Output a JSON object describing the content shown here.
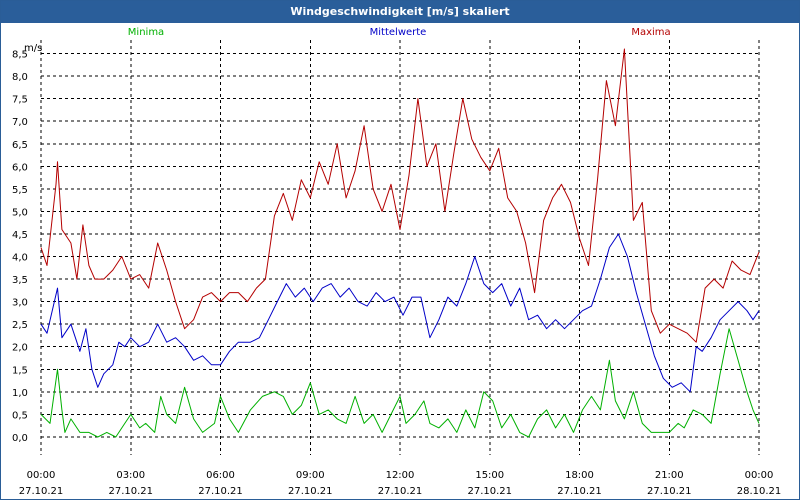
{
  "window": {
    "title": "Windgeschwindigkeit [m/s] skaliert"
  },
  "chart_data": {
    "type": "line",
    "title": "Windgeschwindigkeit [m/s] skaliert",
    "ylabel": "m/s",
    "xlabel": "",
    "ylim": [
      -0.4,
      8.8
    ],
    "yticks": [
      0.0,
      0.5,
      1.0,
      1.5,
      2.0,
      2.5,
      3.0,
      3.5,
      4.0,
      4.5,
      5.0,
      5.5,
      6.0,
      6.5,
      7.0,
      7.5,
      8.0,
      8.5
    ],
    "ytick_labels": [
      "0,0",
      "0,5",
      "1,0",
      "1,5",
      "2,0",
      "2,5",
      "3,0",
      "3,5",
      "4,0",
      "4,5",
      "5,0",
      "5,5",
      "6,0",
      "6,5",
      "7,0",
      "7,5",
      "8,0",
      "8,5"
    ],
    "xlim": [
      0,
      24
    ],
    "xticks": [
      {
        "hour": 0,
        "time": "00:00",
        "date": "27.10.21"
      },
      {
        "hour": 3,
        "time": "03:00",
        "date": "27.10.21"
      },
      {
        "hour": 6,
        "time": "06:00",
        "date": "27.10.21"
      },
      {
        "hour": 9,
        "time": "09:00",
        "date": "27.10.21"
      },
      {
        "hour": 12,
        "time": "12:00",
        "date": "27.10.21"
      },
      {
        "hour": 15,
        "time": "15:00",
        "date": "27.10.21"
      },
      {
        "hour": 18,
        "time": "18:00",
        "date": "27.10.21"
      },
      {
        "hour": 21,
        "time": "21:00",
        "date": "27.10.21"
      },
      {
        "hour": 24,
        "time": "00:00",
        "date": "28.10.21"
      }
    ],
    "grid": true,
    "legend_position": "top",
    "series": [
      {
        "name": "Minima",
        "color": "#00b000",
        "points": [
          [
            0,
            0.5
          ],
          [
            0.3,
            0.3
          ],
          [
            0.55,
            1.5
          ],
          [
            0.7,
            0.6
          ],
          [
            0.8,
            0.1
          ],
          [
            1.0,
            0.4
          ],
          [
            1.3,
            0.1
          ],
          [
            1.6,
            0.1
          ],
          [
            1.9,
            0.0
          ],
          [
            2.2,
            0.1
          ],
          [
            2.5,
            0.0
          ],
          [
            2.8,
            0.3
          ],
          [
            3.0,
            0.5
          ],
          [
            3.3,
            0.2
          ],
          [
            3.5,
            0.3
          ],
          [
            3.8,
            0.1
          ],
          [
            4.0,
            0.9
          ],
          [
            4.2,
            0.5
          ],
          [
            4.5,
            0.3
          ],
          [
            4.8,
            1.1
          ],
          [
            5.1,
            0.4
          ],
          [
            5.4,
            0.1
          ],
          [
            5.8,
            0.3
          ],
          [
            6.0,
            0.9
          ],
          [
            6.3,
            0.4
          ],
          [
            6.6,
            0.1
          ],
          [
            7.0,
            0.6
          ],
          [
            7.4,
            0.9
          ],
          [
            7.8,
            1.0
          ],
          [
            8.1,
            0.9
          ],
          [
            8.4,
            0.5
          ],
          [
            8.7,
            0.7
          ],
          [
            9.0,
            1.2
          ],
          [
            9.3,
            0.5
          ],
          [
            9.6,
            0.6
          ],
          [
            9.9,
            0.4
          ],
          [
            10.2,
            0.3
          ],
          [
            10.5,
            0.9
          ],
          [
            10.8,
            0.3
          ],
          [
            11.1,
            0.5
          ],
          [
            11.4,
            0.1
          ],
          [
            11.7,
            0.5
          ],
          [
            12.0,
            0.9
          ],
          [
            12.2,
            0.3
          ],
          [
            12.5,
            0.5
          ],
          [
            12.8,
            0.8
          ],
          [
            13.0,
            0.3
          ],
          [
            13.3,
            0.2
          ],
          [
            13.6,
            0.4
          ],
          [
            13.9,
            0.1
          ],
          [
            14.2,
            0.6
          ],
          [
            14.5,
            0.2
          ],
          [
            14.8,
            1.0
          ],
          [
            15.1,
            0.8
          ],
          [
            15.4,
            0.2
          ],
          [
            15.7,
            0.5
          ],
          [
            16.0,
            0.1
          ],
          [
            16.3,
            0.0
          ],
          [
            16.6,
            0.4
          ],
          [
            16.9,
            0.6
          ],
          [
            17.2,
            0.2
          ],
          [
            17.5,
            0.5
          ],
          [
            17.8,
            0.1
          ],
          [
            18.1,
            0.6
          ],
          [
            18.4,
            0.9
          ],
          [
            18.7,
            0.6
          ],
          [
            19.0,
            1.7
          ],
          [
            19.2,
            0.8
          ],
          [
            19.5,
            0.4
          ],
          [
            19.8,
            1.0
          ],
          [
            20.1,
            0.3
          ],
          [
            20.4,
            0.1
          ],
          [
            20.7,
            0.1
          ],
          [
            21.0,
            0.1
          ],
          [
            21.3,
            0.3
          ],
          [
            21.5,
            0.2
          ],
          [
            21.8,
            0.6
          ],
          [
            22.1,
            0.5
          ],
          [
            22.4,
            0.3
          ],
          [
            22.7,
            1.4
          ],
          [
            23.0,
            2.4
          ],
          [
            23.3,
            1.7
          ],
          [
            23.6,
            1.0
          ],
          [
            23.8,
            0.6
          ],
          [
            24.0,
            0.3
          ]
        ]
      },
      {
        "name": "Mittelwerte",
        "color": "#0000c8",
        "points": [
          [
            0,
            2.5
          ],
          [
            0.2,
            2.3
          ],
          [
            0.55,
            3.3
          ],
          [
            0.7,
            2.2
          ],
          [
            1.0,
            2.5
          ],
          [
            1.3,
            1.9
          ],
          [
            1.5,
            2.4
          ],
          [
            1.7,
            1.5
          ],
          [
            1.9,
            1.1
          ],
          [
            2.1,
            1.4
          ],
          [
            2.4,
            1.6
          ],
          [
            2.6,
            2.1
          ],
          [
            2.8,
            2.0
          ],
          [
            3.0,
            2.2
          ],
          [
            3.3,
            2.0
          ],
          [
            3.6,
            2.1
          ],
          [
            3.9,
            2.5
          ],
          [
            4.2,
            2.1
          ],
          [
            4.5,
            2.2
          ],
          [
            4.8,
            2.0
          ],
          [
            5.1,
            1.7
          ],
          [
            5.4,
            1.8
          ],
          [
            5.7,
            1.6
          ],
          [
            6.0,
            1.6
          ],
          [
            6.3,
            1.9
          ],
          [
            6.6,
            2.1
          ],
          [
            7.0,
            2.1
          ],
          [
            7.3,
            2.2
          ],
          [
            7.6,
            2.6
          ],
          [
            7.9,
            3.0
          ],
          [
            8.2,
            3.4
          ],
          [
            8.5,
            3.1
          ],
          [
            8.8,
            3.3
          ],
          [
            9.1,
            3.0
          ],
          [
            9.4,
            3.3
          ],
          [
            9.7,
            3.4
          ],
          [
            10.0,
            3.1
          ],
          [
            10.3,
            3.3
          ],
          [
            10.6,
            3.0
          ],
          [
            10.9,
            2.9
          ],
          [
            11.2,
            3.2
          ],
          [
            11.5,
            3.0
          ],
          [
            11.8,
            3.1
          ],
          [
            12.1,
            2.7
          ],
          [
            12.4,
            3.1
          ],
          [
            12.7,
            3.1
          ],
          [
            13.0,
            2.2
          ],
          [
            13.3,
            2.6
          ],
          [
            13.6,
            3.1
          ],
          [
            13.9,
            2.9
          ],
          [
            14.2,
            3.4
          ],
          [
            14.5,
            4.0
          ],
          [
            14.8,
            3.4
          ],
          [
            15.1,
            3.2
          ],
          [
            15.4,
            3.4
          ],
          [
            15.7,
            2.9
          ],
          [
            16.0,
            3.3
          ],
          [
            16.3,
            2.6
          ],
          [
            16.6,
            2.7
          ],
          [
            16.9,
            2.4
          ],
          [
            17.2,
            2.6
          ],
          [
            17.5,
            2.4
          ],
          [
            17.8,
            2.6
          ],
          [
            18.1,
            2.8
          ],
          [
            18.4,
            2.9
          ],
          [
            18.7,
            3.5
          ],
          [
            19.0,
            4.2
          ],
          [
            19.3,
            4.5
          ],
          [
            19.6,
            4.0
          ],
          [
            19.9,
            3.2
          ],
          [
            20.2,
            2.5
          ],
          [
            20.5,
            1.8
          ],
          [
            20.8,
            1.3
          ],
          [
            21.1,
            1.1
          ],
          [
            21.4,
            1.2
          ],
          [
            21.7,
            1.0
          ],
          [
            21.9,
            2.0
          ],
          [
            22.1,
            1.9
          ],
          [
            22.4,
            2.2
          ],
          [
            22.7,
            2.6
          ],
          [
            23.0,
            2.8
          ],
          [
            23.3,
            3.0
          ],
          [
            23.6,
            2.8
          ],
          [
            23.8,
            2.6
          ],
          [
            24.0,
            2.8
          ]
        ]
      },
      {
        "name": "Maxima",
        "color": "#b40000",
        "points": [
          [
            0,
            4.2
          ],
          [
            0.2,
            3.8
          ],
          [
            0.5,
            5.6
          ],
          [
            0.55,
            6.1
          ],
          [
            0.7,
            4.6
          ],
          [
            1.0,
            4.3
          ],
          [
            1.2,
            3.5
          ],
          [
            1.4,
            4.7
          ],
          [
            1.6,
            3.8
          ],
          [
            1.8,
            3.5
          ],
          [
            2.1,
            3.5
          ],
          [
            2.4,
            3.7
          ],
          [
            2.7,
            4.0
          ],
          [
            3.0,
            3.5
          ],
          [
            3.3,
            3.6
          ],
          [
            3.6,
            3.3
          ],
          [
            3.9,
            4.3
          ],
          [
            4.2,
            3.7
          ],
          [
            4.5,
            3.0
          ],
          [
            4.8,
            2.4
          ],
          [
            5.1,
            2.6
          ],
          [
            5.4,
            3.1
          ],
          [
            5.7,
            3.2
          ],
          [
            6.0,
            3.0
          ],
          [
            6.3,
            3.2
          ],
          [
            6.6,
            3.2
          ],
          [
            6.9,
            3.0
          ],
          [
            7.2,
            3.3
          ],
          [
            7.5,
            3.5
          ],
          [
            7.8,
            4.9
          ],
          [
            8.1,
            5.4
          ],
          [
            8.4,
            4.8
          ],
          [
            8.7,
            5.7
          ],
          [
            9.0,
            5.3
          ],
          [
            9.3,
            6.1
          ],
          [
            9.6,
            5.6
          ],
          [
            9.9,
            6.5
          ],
          [
            10.2,
            5.3
          ],
          [
            10.5,
            5.9
          ],
          [
            10.8,
            6.9
          ],
          [
            11.1,
            5.5
          ],
          [
            11.4,
            5.0
          ],
          [
            11.7,
            5.6
          ],
          [
            12.0,
            4.6
          ],
          [
            12.3,
            5.8
          ],
          [
            12.6,
            7.5
          ],
          [
            12.9,
            6.0
          ],
          [
            13.2,
            6.5
          ],
          [
            13.5,
            5.0
          ],
          [
            13.8,
            6.3
          ],
          [
            14.1,
            7.5
          ],
          [
            14.4,
            6.6
          ],
          [
            14.7,
            6.2
          ],
          [
            15.0,
            5.9
          ],
          [
            15.3,
            6.4
          ],
          [
            15.6,
            5.3
          ],
          [
            15.9,
            5.0
          ],
          [
            16.2,
            4.3
          ],
          [
            16.5,
            3.2
          ],
          [
            16.8,
            4.8
          ],
          [
            17.1,
            5.3
          ],
          [
            17.4,
            5.6
          ],
          [
            17.7,
            5.2
          ],
          [
            18.0,
            4.4
          ],
          [
            18.3,
            3.8
          ],
          [
            18.6,
            5.7
          ],
          [
            18.9,
            7.9
          ],
          [
            19.2,
            6.9
          ],
          [
            19.5,
            8.6
          ],
          [
            19.8,
            4.8
          ],
          [
            20.1,
            5.2
          ],
          [
            20.4,
            2.8
          ],
          [
            20.7,
            2.3
          ],
          [
            21.0,
            2.5
          ],
          [
            21.3,
            2.4
          ],
          [
            21.6,
            2.3
          ],
          [
            21.9,
            2.1
          ],
          [
            22.2,
            3.3
          ],
          [
            22.5,
            3.5
          ],
          [
            22.8,
            3.3
          ],
          [
            23.1,
            3.9
          ],
          [
            23.4,
            3.7
          ],
          [
            23.7,
            3.6
          ],
          [
            24.0,
            4.1
          ]
        ]
      }
    ]
  }
}
